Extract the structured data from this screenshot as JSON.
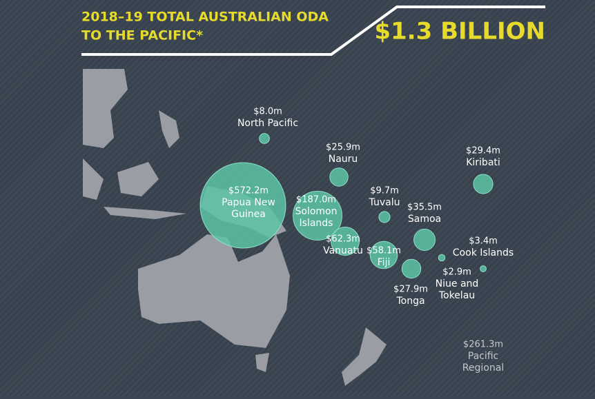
{
  "header": {
    "title_lines": [
      "2018–19 TOTAL AUSTRALIAN ODA",
      "TO THE PACIFIC*"
    ],
    "total": "$1.3 BILLION"
  },
  "regions": [
    {
      "name_lines": [
        "North Pacific"
      ],
      "value": 8.0,
      "value_label": "$8.0m"
    },
    {
      "name_lines": [
        "Nauru"
      ],
      "value": 25.9,
      "value_label": "$25.9m"
    },
    {
      "name_lines": [
        "Kiribati"
      ],
      "value": 29.4,
      "value_label": "$29.4m"
    },
    {
      "name_lines": [
        "Papua New",
        "Guinea"
      ],
      "value": 572.2,
      "value_label": "$572.2m"
    },
    {
      "name_lines": [
        "Solomon",
        "Islands"
      ],
      "value": 187.0,
      "value_label": "$187.0m"
    },
    {
      "name_lines": [
        "Tuvalu"
      ],
      "value": 9.7,
      "value_label": "$9.7m"
    },
    {
      "name_lines": [
        "Samoa"
      ],
      "value": 35.5,
      "value_label": "$35.5m"
    },
    {
      "name_lines": [
        "Vanuatu"
      ],
      "value": 62.3,
      "value_label": "$62.3m"
    },
    {
      "name_lines": [
        "Fiji"
      ],
      "value": 58.1,
      "value_label": "$58.1m"
    },
    {
      "name_lines": [
        "Cook Islands"
      ],
      "value": 3.4,
      "value_label": "$3.4m"
    },
    {
      "name_lines": [
        "Niue and",
        "Tokelau"
      ],
      "value": 2.9,
      "value_label": "$2.9m"
    },
    {
      "name_lines": [
        "Tonga"
      ],
      "value": 27.9,
      "value_label": "$27.9m"
    }
  ],
  "regional": {
    "name_lines": [
      "Pacific",
      "Regional"
    ],
    "value_label": "$261.3m"
  }
}
